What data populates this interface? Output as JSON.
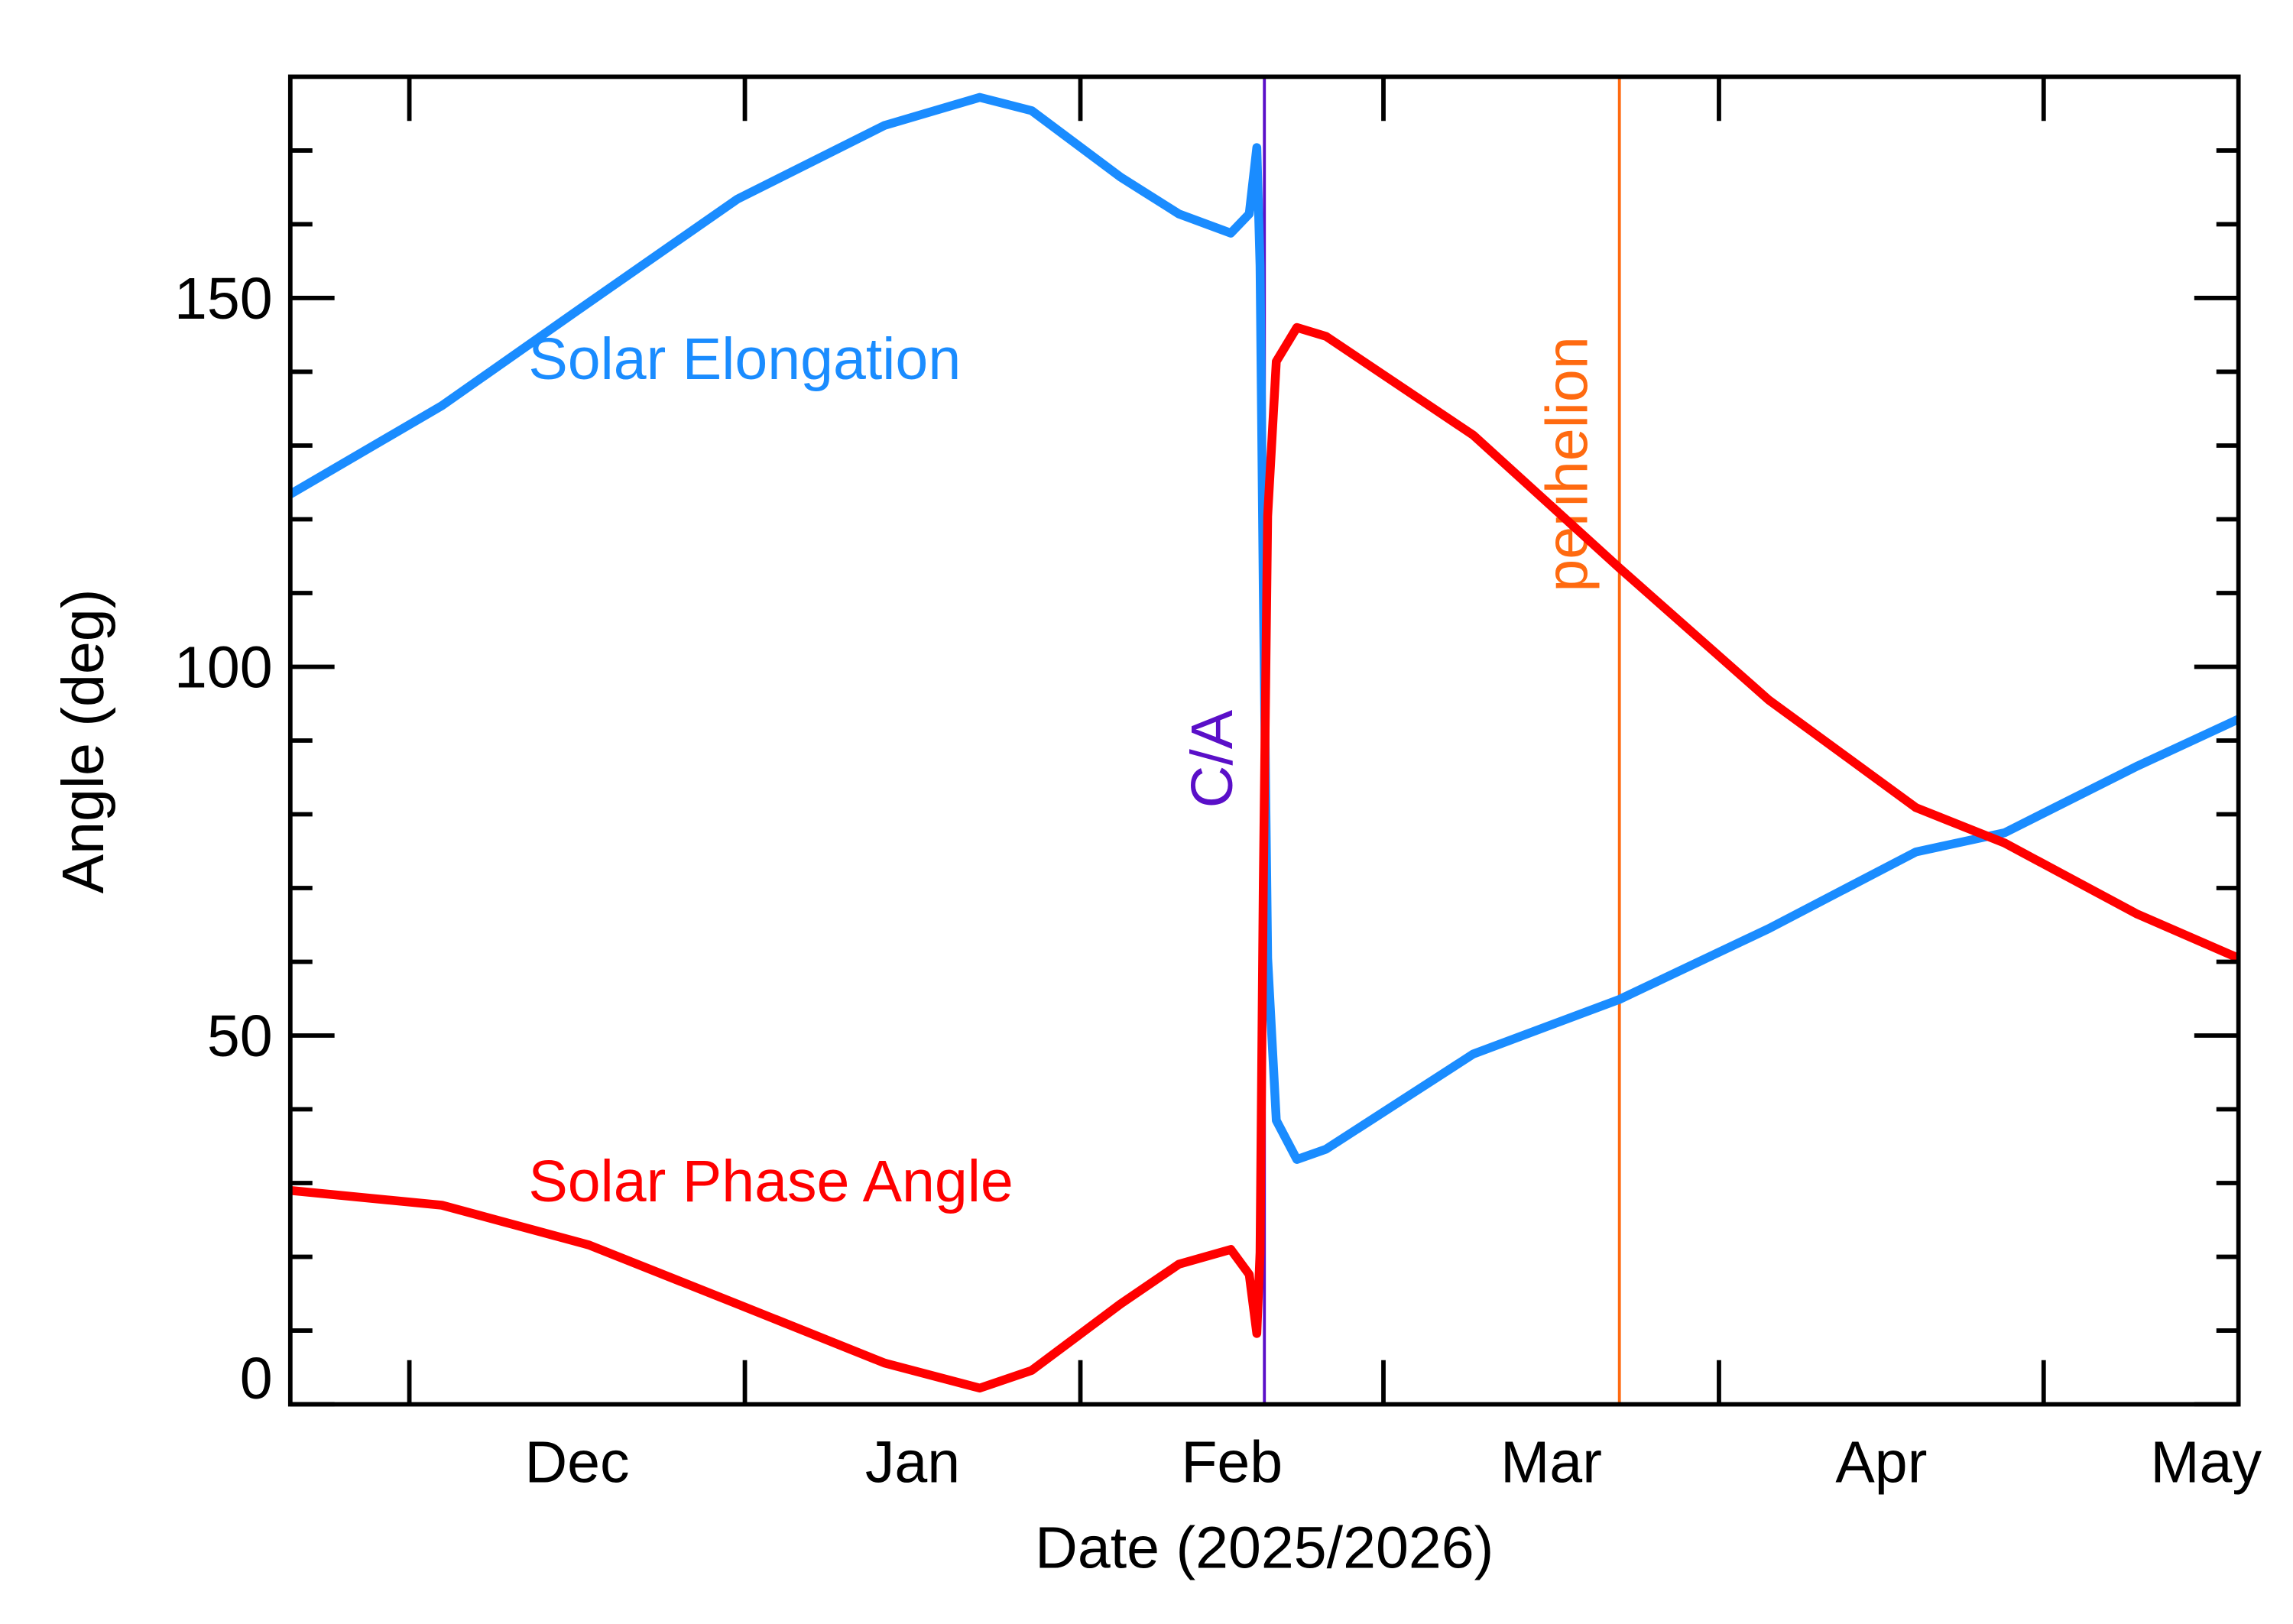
{
  "chart_data": {
    "type": "line",
    "xlabel": "Date (2025/2026)",
    "ylabel": "Angle (deg)",
    "xlim": [
      0,
      180
    ],
    "xticks": [
      {
        "value": 11,
        "label": "Dec"
      },
      {
        "value": 42,
        "label": "Jan"
      },
      {
        "value": 73,
        "label": "Feb"
      },
      {
        "value": 101,
        "label": "Mar"
      },
      {
        "value": 132,
        "label": "Apr"
      },
      {
        "value": 162,
        "label": "May"
      }
    ],
    "ylim": [
      0,
      180
    ],
    "yticks": [
      0,
      50,
      100,
      150
    ],
    "yminor_ticks": [
      10,
      20,
      30,
      40,
      60,
      70,
      80,
      90,
      110,
      120,
      130,
      140,
      160,
      170
    ],
    "x": [
      0,
      14,
      27.6,
      41.3,
      54.9,
      63.7,
      68.5,
      76.7,
      82.1,
      86.9,
      88.6,
      89.3,
      89.6,
      89.9,
      90.3,
      91.1,
      93.0,
      95.7,
      109.3,
      122.8,
      136.6,
      150.2,
      158.4,
      170.6,
      180
    ],
    "series": [
      {
        "name": "Solar Elongation",
        "color": "#1a8cff",
        "label_at": [
          22,
          139
        ],
        "values": [
          123.4,
          135.4,
          149.4,
          163.4,
          173.4,
          177.2,
          175.4,
          166.4,
          161.4,
          158.8,
          161.4,
          170.4,
          154.4,
          110.4,
          60.5,
          38.5,
          33.2,
          34.6,
          47.5,
          54.9,
          64.5,
          74.9,
          77.5,
          86.5,
          92.9
        ]
      },
      {
        "name": "Solar Phase Angle",
        "color": "#ff0000",
        "label_at": [
          22,
          27.5
        ],
        "values": [
          29.0,
          27.0,
          21.6,
          13.6,
          5.6,
          2.2,
          4.6,
          13.6,
          19.0,
          21.0,
          17.6,
          9.6,
          20.6,
          70.5,
          120.4,
          141.4,
          146.0,
          144.8,
          131.4,
          113.4,
          95.5,
          80.9,
          76.1,
          66.5,
          60.5
        ]
      }
    ],
    "vlines": [
      {
        "text": "C/A",
        "x": 90.0,
        "color": "#5a0fc8"
      },
      {
        "text": "perihelion",
        "x": 122.8,
        "color": "#ff6a10"
      }
    ]
  }
}
